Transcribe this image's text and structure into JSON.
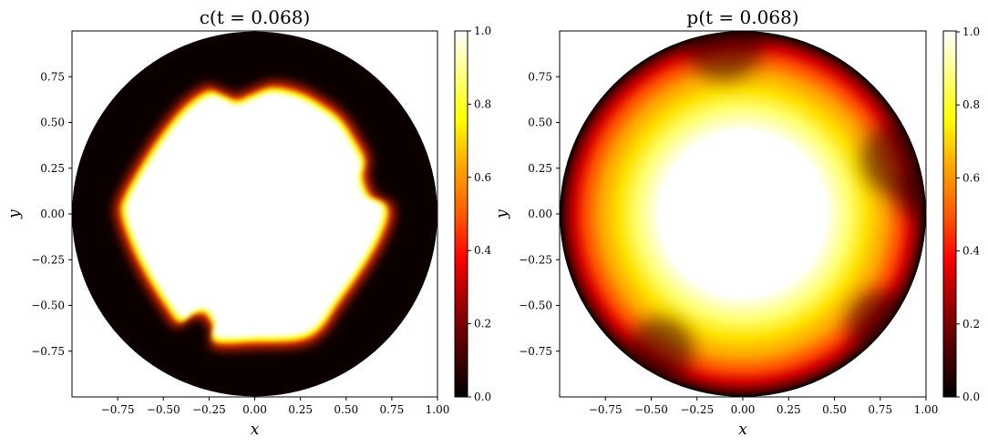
{
  "chart_data": [
    {
      "type": "heatmap",
      "field": "c",
      "title": "c(t = 0.068)",
      "xlabel": "x",
      "ylabel": "y",
      "xlim": [
        -1.0,
        1.0
      ],
      "ylim": [
        -1.0,
        1.0
      ],
      "x_ticks": [
        "−0.75",
        "−0.50",
        "−0.25",
        "0.00",
        "0.25",
        "0.50",
        "0.75",
        "1.00"
      ],
      "x_tick_values": [
        -0.75,
        -0.5,
        -0.25,
        0.0,
        0.25,
        0.5,
        0.75,
        1.0
      ],
      "y_ticks": [
        "0.75",
        "0.50",
        "0.25",
        "0.00",
        "−0.25",
        "−0.50",
        "−0.75"
      ],
      "y_tick_values": [
        0.75,
        0.5,
        0.25,
        0.0,
        -0.25,
        -0.5,
        -0.75
      ],
      "colorbar": {
        "colormap": "hot",
        "range": [
          0.0,
          1.0
        ],
        "tick_labels": [
          "0.0",
          "0.2",
          "0.4",
          "0.6",
          "0.8",
          "1.0"
        ],
        "tick_values": [
          0.0,
          0.2,
          0.4,
          0.6,
          0.8,
          1.0
        ]
      },
      "domain": "unit disk",
      "description_values": {
        "background_value": 0.0,
        "interior_value": 1.0
      }
    },
    {
      "type": "heatmap",
      "field": "p",
      "title": "p(t = 0.068)",
      "xlabel": "x",
      "ylabel": "y",
      "xlim": [
        -1.0,
        1.0
      ],
      "ylim": [
        -1.0,
        1.0
      ],
      "x_ticks": [
        "−0.75",
        "−0.50",
        "−0.25",
        "0.00",
        "0.25",
        "0.50",
        "0.75",
        "1.00"
      ],
      "x_tick_values": [
        -0.75,
        -0.5,
        -0.25,
        0.0,
        0.25,
        0.5,
        0.75,
        1.0
      ],
      "y_ticks": [
        "0.75",
        "0.50",
        "0.25",
        "0.00",
        "−0.25",
        "−0.50",
        "−0.75"
      ],
      "y_tick_values": [
        0.75,
        0.5,
        0.25,
        0.0,
        -0.25,
        -0.5,
        -0.75
      ],
      "colorbar": {
        "colormap": "hot",
        "range": [
          0.0,
          1.0
        ],
        "tick_labels": [
          "0.0",
          "0.2",
          "0.4",
          "0.6",
          "0.8",
          "1.0"
        ],
        "tick_values": [
          0.0,
          0.2,
          0.4,
          0.6,
          0.8,
          1.0
        ]
      },
      "domain": "unit disk",
      "description_values": {
        "center_value": 1.0,
        "boundary_value": 0.0
      }
    }
  ],
  "colors": {
    "hot_0": "#0b0000",
    "hot_02": "#7a0000",
    "hot_04": "#ff1a00",
    "hot_06": "#ff8a00",
    "hot_08": "#ffff00",
    "hot_1": "#ffffff"
  }
}
